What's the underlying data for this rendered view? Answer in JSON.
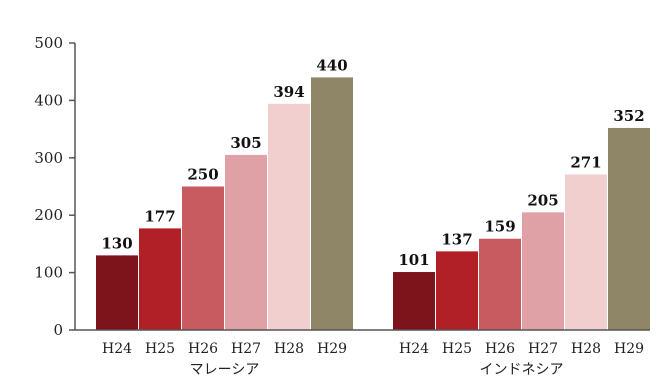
{
  "chart_data": {
    "type": "bar",
    "ylim": [
      0,
      500
    ],
    "yticks": [
      "0",
      "100",
      "200",
      "300",
      "400",
      "500"
    ],
    "categories": [
      "H24",
      "H25",
      "H26",
      "H27",
      "H28",
      "H29"
    ],
    "groups": [
      {
        "name": "マレーシア",
        "values": [
          130,
          177,
          250,
          305,
          394,
          440
        ]
      },
      {
        "name": "インドネシア",
        "values": [
          101,
          137,
          159,
          205,
          271,
          352
        ]
      }
    ],
    "bar_colors": [
      "#7d141b",
      "#b02026",
      "#c75b60",
      "#dfa1a5",
      "#f2cfcf",
      "#8f8567"
    ],
    "grid": false,
    "legend": "none"
  }
}
